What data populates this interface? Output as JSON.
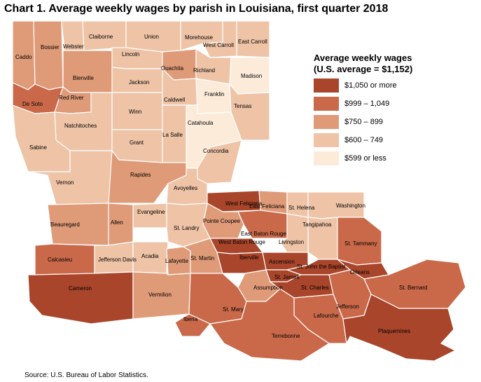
{
  "title": "Chart 1. Average weekly wages by parish in Louisiana, first quarter 2018",
  "legend": {
    "title_line1": "Average weekly wages",
    "title_line2": "(U.S. average = $1,152)",
    "items": [
      {
        "label": "$1,050 or more",
        "color": "#a8452a"
      },
      {
        "label": "$999 – 1,049",
        "color": "#c9694a"
      },
      {
        "label": "$750 – 899",
        "color": "#df9a78"
      },
      {
        "label": "$600 – 749",
        "color": "#eec3a6"
      },
      {
        "label": "$599 or less",
        "color": "#fcebd9"
      }
    ]
  },
  "parishes": [
    {
      "name": "Caddo",
      "class": 2
    },
    {
      "name": "Bossier",
      "class": 2
    },
    {
      "name": "Webster",
      "class": 3
    },
    {
      "name": "Claiborne",
      "class": 3
    },
    {
      "name": "Union",
      "class": 3
    },
    {
      "name": "Morehouse",
      "class": 3
    },
    {
      "name": "West Carroll",
      "class": 3
    },
    {
      "name": "East Carroll",
      "class": 3
    },
    {
      "name": "Lincoln",
      "class": 3
    },
    {
      "name": "Ouachita",
      "class": 2
    },
    {
      "name": "Richland",
      "class": 3
    },
    {
      "name": "Madison",
      "class": 4
    },
    {
      "name": "Bienville",
      "class": 2
    },
    {
      "name": "Jackson",
      "class": 3
    },
    {
      "name": "Caldwell",
      "class": 3
    },
    {
      "name": "Franklin",
      "class": 4
    },
    {
      "name": "De Soto",
      "class": 1
    },
    {
      "name": "Red River",
      "class": 2
    },
    {
      "name": "Tensas",
      "class": 3
    },
    {
      "name": "Winn",
      "class": 3
    },
    {
      "name": "Natchitoches",
      "class": 3
    },
    {
      "name": "Catahoula",
      "class": 4
    },
    {
      "name": "La Salle",
      "class": 3
    },
    {
      "name": "Grant",
      "class": 3
    },
    {
      "name": "Sabine",
      "class": 3
    },
    {
      "name": "Concordia",
      "class": 3
    },
    {
      "name": "Vernon",
      "class": 3
    },
    {
      "name": "Rapides",
      "class": 2
    },
    {
      "name": "Avoyelles",
      "class": 3
    },
    {
      "name": "West Feliciana",
      "class": 0
    },
    {
      "name": "East Feliciana",
      "class": 2
    },
    {
      "name": "St. Helena",
      "class": 3
    },
    {
      "name": "Washington",
      "class": 3
    },
    {
      "name": "Evangeline",
      "class": 3
    },
    {
      "name": "Beauregard",
      "class": 2
    },
    {
      "name": "Allen",
      "class": 2
    },
    {
      "name": "Pointe Coupee",
      "class": 2
    },
    {
      "name": "Tangipahoa",
      "class": 3
    },
    {
      "name": "St. Landry",
      "class": 3
    },
    {
      "name": "East Baton Rouge",
      "class": 1
    },
    {
      "name": "West Baton Rouge",
      "class": 0
    },
    {
      "name": "Livingston",
      "class": 3
    },
    {
      "name": "St. Tammany",
      "class": 1
    },
    {
      "name": "Calcasieu",
      "class": 1
    },
    {
      "name": "Jefferson Davis",
      "class": 3
    },
    {
      "name": "Acadia",
      "class": 3
    },
    {
      "name": "Lafayette",
      "class": 2
    },
    {
      "name": "St. Martin",
      "class": 2
    },
    {
      "name": "Iberville",
      "class": 0
    },
    {
      "name": "Ascension",
      "class": 0
    },
    {
      "name": "St. John the Baptist",
      "class": 0
    },
    {
      "name": "Orleans",
      "class": 0
    },
    {
      "name": "St. James",
      "class": 0
    },
    {
      "name": "Cameron",
      "class": 0
    },
    {
      "name": "Vermilion",
      "class": 2
    },
    {
      "name": "Assumption",
      "class": 2
    },
    {
      "name": "St. Charles",
      "class": 0
    },
    {
      "name": "St. Bernard",
      "class": 1
    },
    {
      "name": "Jefferson",
      "class": 1
    },
    {
      "name": "St. Mary",
      "class": 1
    },
    {
      "name": "Iberia",
      "class": 1
    },
    {
      "name": "Lafourche",
      "class": 1
    },
    {
      "name": "Terrebonne",
      "class": 1
    },
    {
      "name": "Plaquemines",
      "class": 0
    }
  ],
  "source": "Source: U.S. Bureau of Labor Statistics."
}
